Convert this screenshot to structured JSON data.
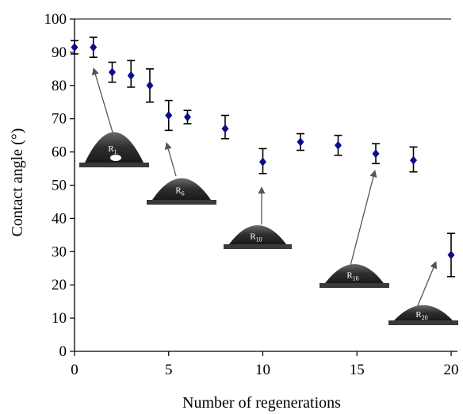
{
  "chart_data": {
    "type": "scatter",
    "title": "",
    "xlabel": "Number of regenerations",
    "ylabel": "Contact angle (°)",
    "xlim": [
      0,
      20
    ],
    "ylim": [
      0,
      100
    ],
    "x_ticks": [
      "0",
      "5",
      "10",
      "15",
      "20"
    ],
    "y_ticks": [
      "0",
      "10",
      "20",
      "30",
      "40",
      "50",
      "60",
      "70",
      "80",
      "90",
      "100"
    ],
    "grid": false,
    "marker_color": "#0d0d8c",
    "series": [
      {
        "x": [
          0,
          1,
          2,
          3,
          4,
          5,
          6,
          8,
          10,
          12,
          14,
          16,
          18,
          20
        ],
        "y": [
          91.5,
          91.5,
          84,
          83,
          80,
          71,
          70.5,
          67,
          57,
          63,
          62,
          59.5,
          57.5,
          29
        ],
        "err_low": [
          2,
          3,
          3,
          3.5,
          5,
          4.5,
          2,
          3,
          3.5,
          2.5,
          3,
          3,
          3.5,
          6.5
        ],
        "err_high": [
          2,
          3,
          3,
          4.5,
          5,
          4.5,
          2,
          4,
          4,
          2.5,
          3,
          3,
          4,
          6.5
        ]
      }
    ],
    "annotations": [
      {
        "label": "R",
        "sub": "1"
      },
      {
        "label": "R",
        "sub": "6"
      },
      {
        "label": "R",
        "sub": "10"
      },
      {
        "label": "R",
        "sub": "16"
      },
      {
        "label": "R",
        "sub": "20"
      }
    ]
  }
}
